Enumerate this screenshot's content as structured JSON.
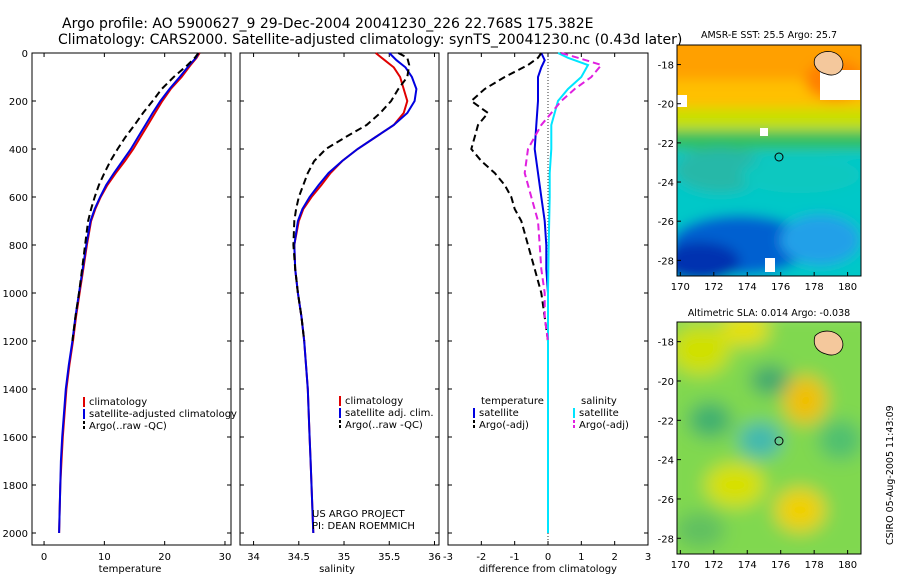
{
  "header": {
    "line1": "Argo profile: AO 5900627_9 29-Dec-2004 20041230_226 22.768S 175.382E",
    "line2": "Climatology: CARS2000. Satellite-adjusted climatology: synTS_20041230.nc (0.43d later)"
  },
  "credit": {
    "line1": "US ARGO PROJECT",
    "line2": "PI: DEAN ROEMMICH"
  },
  "side_stamp": "CSIRO 05-Aug-2005 11:43:09",
  "colors": {
    "climatology": "#e00000",
    "satellite": "#0000e0",
    "argo": "#000000",
    "satellite_sal": "#00e5ff",
    "argo_sal": "#e020e0"
  },
  "chart_data": [
    {
      "type": "line",
      "xlabel": "temperature",
      "xticks": [
        "0",
        "10",
        "20",
        "30"
      ],
      "yticks": [
        "0",
        "200",
        "400",
        "600",
        "800",
        "1000",
        "1200",
        "1400",
        "1600",
        "1800",
        "2000"
      ],
      "xlim": [
        -2,
        31
      ],
      "ylim": [
        2050,
        0
      ],
      "legend": [
        "climatology",
        "satellite-adjusted climatology",
        "Argo(..raw -QC)"
      ],
      "series": [
        {
          "name": "climatology",
          "color": "#e00000",
          "style": "solid",
          "points": [
            [
              25.8,
              0
            ],
            [
              25.3,
              20
            ],
            [
              24.3,
              50
            ],
            [
              22.8,
              100
            ],
            [
              21.0,
              150
            ],
            [
              19.6,
              200
            ],
            [
              18.4,
              250
            ],
            [
              17.2,
              300
            ],
            [
              16.0,
              350
            ],
            [
              14.8,
              400
            ],
            [
              13.4,
              450
            ],
            [
              11.9,
              500
            ],
            [
              10.5,
              550
            ],
            [
              9.4,
              600
            ],
            [
              8.5,
              650
            ],
            [
              7.8,
              700
            ],
            [
              7.1,
              800
            ],
            [
              6.5,
              900
            ],
            [
              5.9,
              1000
            ],
            [
              5.3,
              1100
            ],
            [
              4.8,
              1200
            ],
            [
              4.2,
              1300
            ],
            [
              3.7,
              1400
            ],
            [
              3.4,
              1500
            ],
            [
              3.1,
              1600
            ],
            [
              2.9,
              1700
            ],
            [
              2.7,
              1800
            ],
            [
              2.6,
              1900
            ],
            [
              2.5,
              2000
            ]
          ]
        },
        {
          "name": "satellite-adjusted climatology",
          "color": "#0000e0",
          "style": "solid",
          "points": [
            [
              25.6,
              0
            ],
            [
              25.2,
              20
            ],
            [
              24.1,
              50
            ],
            [
              22.5,
              100
            ],
            [
              20.8,
              150
            ],
            [
              19.3,
              200
            ],
            [
              18.0,
              250
            ],
            [
              16.8,
              300
            ],
            [
              15.6,
              350
            ],
            [
              14.4,
              400
            ],
            [
              13.0,
              450
            ],
            [
              11.6,
              500
            ],
            [
              10.3,
              550
            ],
            [
              9.3,
              600
            ],
            [
              8.4,
              650
            ],
            [
              7.7,
              700
            ],
            [
              7.0,
              800
            ],
            [
              6.4,
              900
            ],
            [
              5.8,
              1000
            ],
            [
              5.2,
              1100
            ],
            [
              4.7,
              1200
            ],
            [
              4.1,
              1300
            ],
            [
              3.6,
              1400
            ],
            [
              3.3,
              1500
            ],
            [
              3.0,
              1600
            ],
            [
              2.8,
              1700
            ],
            [
              2.7,
              1800
            ],
            [
              2.6,
              1900
            ],
            [
              2.5,
              2000
            ]
          ]
        },
        {
          "name": "Argo(..raw -QC)",
          "color": "#000000",
          "style": "dashed",
          "points": [
            [
              25.6,
              0
            ],
            [
              25.0,
              20
            ],
            [
              23.8,
              50
            ],
            [
              21.5,
              100
            ],
            [
              19.5,
              150
            ],
            [
              18.0,
              200
            ],
            [
              16.4,
              250
            ],
            [
              15.0,
              300
            ],
            [
              13.5,
              350
            ],
            [
              12.2,
              400
            ],
            [
              11.0,
              450
            ],
            [
              10.0,
              500
            ],
            [
              9.1,
              550
            ],
            [
              8.4,
              600
            ],
            [
              7.8,
              650
            ],
            [
              7.3,
              700
            ],
            [
              6.8,
              800
            ],
            [
              6.3,
              900
            ],
            [
              5.8,
              1000
            ],
            [
              5.2,
              1100
            ],
            [
              4.7,
              1200
            ]
          ]
        }
      ]
    },
    {
      "type": "line",
      "xlabel": "salinity",
      "xticks": [
        "34",
        "34.5",
        "35",
        "35.5",
        "36"
      ],
      "xlim": [
        33.85,
        36.05
      ],
      "ylim": [
        2050,
        0
      ],
      "legend": [
        "climatology",
        "satellite adj. clim.",
        "Argo(..raw -QC)"
      ],
      "series": [
        {
          "name": "climatology",
          "color": "#e00000",
          "style": "solid",
          "points": [
            [
              35.35,
              0
            ],
            [
              35.45,
              30
            ],
            [
              35.55,
              60
            ],
            [
              35.62,
              100
            ],
            [
              35.66,
              150
            ],
            [
              35.7,
              200
            ],
            [
              35.66,
              250
            ],
            [
              35.55,
              300
            ],
            [
              35.35,
              350
            ],
            [
              35.15,
              400
            ],
            [
              34.98,
              450
            ],
            [
              34.85,
              500
            ],
            [
              34.75,
              550
            ],
            [
              34.64,
              600
            ],
            [
              34.55,
              650
            ],
            [
              34.5,
              700
            ],
            [
              34.45,
              800
            ],
            [
              34.46,
              900
            ],
            [
              34.49,
              1000
            ],
            [
              34.53,
              1100
            ],
            [
              34.56,
              1200
            ],
            [
              34.58,
              1300
            ],
            [
              34.6,
              1400
            ],
            [
              34.61,
              1500
            ],
            [
              34.62,
              1600
            ],
            [
              34.63,
              1700
            ],
            [
              34.64,
              1800
            ],
            [
              34.65,
              1900
            ],
            [
              34.66,
              2000
            ]
          ]
        },
        {
          "name": "satellite adj. clim.",
          "color": "#0000e0",
          "style": "solid",
          "points": [
            [
              35.5,
              0
            ],
            [
              35.58,
              30
            ],
            [
              35.68,
              60
            ],
            [
              35.75,
              100
            ],
            [
              35.8,
              150
            ],
            [
              35.78,
              200
            ],
            [
              35.7,
              250
            ],
            [
              35.55,
              300
            ],
            [
              35.35,
              350
            ],
            [
              35.15,
              400
            ],
            [
              34.98,
              450
            ],
            [
              34.83,
              500
            ],
            [
              34.72,
              550
            ],
            [
              34.62,
              600
            ],
            [
              34.54,
              650
            ],
            [
              34.49,
              700
            ],
            [
              34.45,
              800
            ],
            [
              34.46,
              900
            ],
            [
              34.49,
              1000
            ],
            [
              34.53,
              1100
            ],
            [
              34.56,
              1200
            ],
            [
              34.58,
              1300
            ],
            [
              34.6,
              1400
            ],
            [
              34.61,
              1500
            ],
            [
              34.62,
              1600
            ],
            [
              34.63,
              1700
            ],
            [
              34.64,
              1800
            ],
            [
              34.65,
              1900
            ],
            [
              34.66,
              2000
            ]
          ]
        },
        {
          "name": "Argo(..raw -QC)",
          "color": "#000000",
          "style": "dashed",
          "points": [
            [
              35.6,
              0
            ],
            [
              35.7,
              20
            ],
            [
              35.72,
              50
            ],
            [
              35.7,
              100
            ],
            [
              35.6,
              150
            ],
            [
              35.52,
              200
            ],
            [
              35.4,
              250
            ],
            [
              35.25,
              300
            ],
            [
              35.02,
              350
            ],
            [
              34.8,
              400
            ],
            [
              34.67,
              450
            ],
            [
              34.6,
              500
            ],
            [
              34.55,
              550
            ],
            [
              34.5,
              600
            ],
            [
              34.47,
              650
            ],
            [
              34.45,
              700
            ],
            [
              34.44,
              800
            ],
            [
              34.46,
              900
            ],
            [
              34.49,
              1000
            ],
            [
              34.53,
              1100
            ],
            [
              34.56,
              1200
            ]
          ]
        }
      ]
    },
    {
      "type": "line",
      "xlabel": "difference from climatology",
      "xticks": [
        "-3",
        "-2",
        "-1",
        "0",
        "1",
        "2",
        "3"
      ],
      "xlim": [
        -3,
        3
      ],
      "ylim": [
        2050,
        0
      ],
      "legend_left": [
        "temperature",
        "satellite",
        "Argo(-adj)"
      ],
      "legend_right": [
        "salinity",
        "satellite",
        "Argo(-adj)"
      ],
      "series": [
        {
          "name": "satellite",
          "color": "#0000e0",
          "style": "solid",
          "points": [
            [
              -0.2,
              0
            ],
            [
              -0.1,
              30
            ],
            [
              -0.2,
              60
            ],
            [
              -0.3,
              100
            ],
            [
              -0.3,
              150
            ],
            [
              -0.3,
              200
            ],
            [
              -0.35,
              300
            ],
            [
              -0.4,
              400
            ],
            [
              -0.3,
              500
            ],
            [
              -0.2,
              600
            ],
            [
              -0.1,
              700
            ],
            [
              -0.05,
              800
            ],
            [
              -0.05,
              900
            ],
            [
              0,
              1000
            ],
            [
              0,
              1200
            ],
            [
              0,
              1400
            ],
            [
              0,
              1600
            ],
            [
              0,
              1800
            ],
            [
              0,
              2000
            ]
          ]
        },
        {
          "name": "Argo(-adj)",
          "color": "#000000",
          "style": "dashed",
          "points": [
            [
              -0.2,
              0
            ],
            [
              -0.3,
              20
            ],
            [
              -0.6,
              50
            ],
            [
              -1.3,
              100
            ],
            [
              -1.9,
              150
            ],
            [
              -2.3,
              200
            ],
            [
              -1.8,
              250
            ],
            [
              -2.1,
              300
            ],
            [
              -2.2,
              350
            ],
            [
              -2.3,
              400
            ],
            [
              -2.0,
              450
            ],
            [
              -1.6,
              500
            ],
            [
              -1.3,
              550
            ],
            [
              -1.1,
              600
            ],
            [
              -1.0,
              650
            ],
            [
              -0.8,
              700
            ],
            [
              -0.6,
              800
            ],
            [
              -0.4,
              900
            ],
            [
              -0.2,
              1000
            ],
            [
              -0.1,
              1100
            ],
            [
              0,
              1200
            ]
          ]
        },
        {
          "name": "satellite",
          "color": "#00e5ff",
          "style": "solid",
          "points": [
            [
              0.3,
              0
            ],
            [
              0.6,
              20
            ],
            [
              1.2,
              50
            ],
            [
              1.0,
              100
            ],
            [
              0.6,
              150
            ],
            [
              0.3,
              200
            ],
            [
              0.1,
              300
            ],
            [
              0.1,
              400
            ],
            [
              0.05,
              500
            ],
            [
              0.05,
              600
            ],
            [
              0.02,
              800
            ],
            [
              0,
              1000
            ],
            [
              0,
              1200
            ],
            [
              0,
              1400
            ],
            [
              0,
              1600
            ],
            [
              0,
              1800
            ],
            [
              0,
              2000
            ]
          ]
        },
        {
          "name": "Argo(-adj)",
          "color": "#e020e0",
          "style": "dashed",
          "points": [
            [
              0.4,
              0
            ],
            [
              0.9,
              20
            ],
            [
              1.6,
              50
            ],
            [
              1.3,
              100
            ],
            [
              0.8,
              150
            ],
            [
              0.4,
              200
            ],
            [
              -0.2,
              300
            ],
            [
              -0.6,
              400
            ],
            [
              -0.7,
              500
            ],
            [
              -0.5,
              600
            ],
            [
              -0.3,
              700
            ],
            [
              -0.25,
              800
            ],
            [
              -0.2,
              900
            ],
            [
              -0.1,
              1000
            ],
            [
              -0.1,
              1100
            ],
            [
              0,
              1200
            ]
          ]
        }
      ]
    },
    {
      "type": "heatmap",
      "title": "AMSR-E SST: 25.5 Argo: 25.7",
      "xticks": [
        "170",
        "172",
        "174",
        "176",
        "178",
        "180"
      ],
      "yticks": [
        "-18",
        "-20",
        "-22",
        "-24",
        "-26",
        "-28"
      ],
      "xlim": [
        169.8,
        180.8
      ],
      "ylim": [
        -17,
        -28.8
      ],
      "marker": {
        "lon": 175.382,
        "lat": -22.768
      }
    },
    {
      "type": "heatmap",
      "title": "Altimetric SLA: 0.014 Argo: -0.038",
      "xticks": [
        "170",
        "172",
        "174",
        "176",
        "178",
        "180"
      ],
      "yticks": [
        "-18",
        "-20",
        "-22",
        "-24",
        "-26",
        "-28"
      ],
      "xlim": [
        169.8,
        180.8
      ],
      "ylim": [
        -17,
        -28.8
      ],
      "marker": {
        "lon": 175.382,
        "lat": -22.768
      }
    }
  ]
}
